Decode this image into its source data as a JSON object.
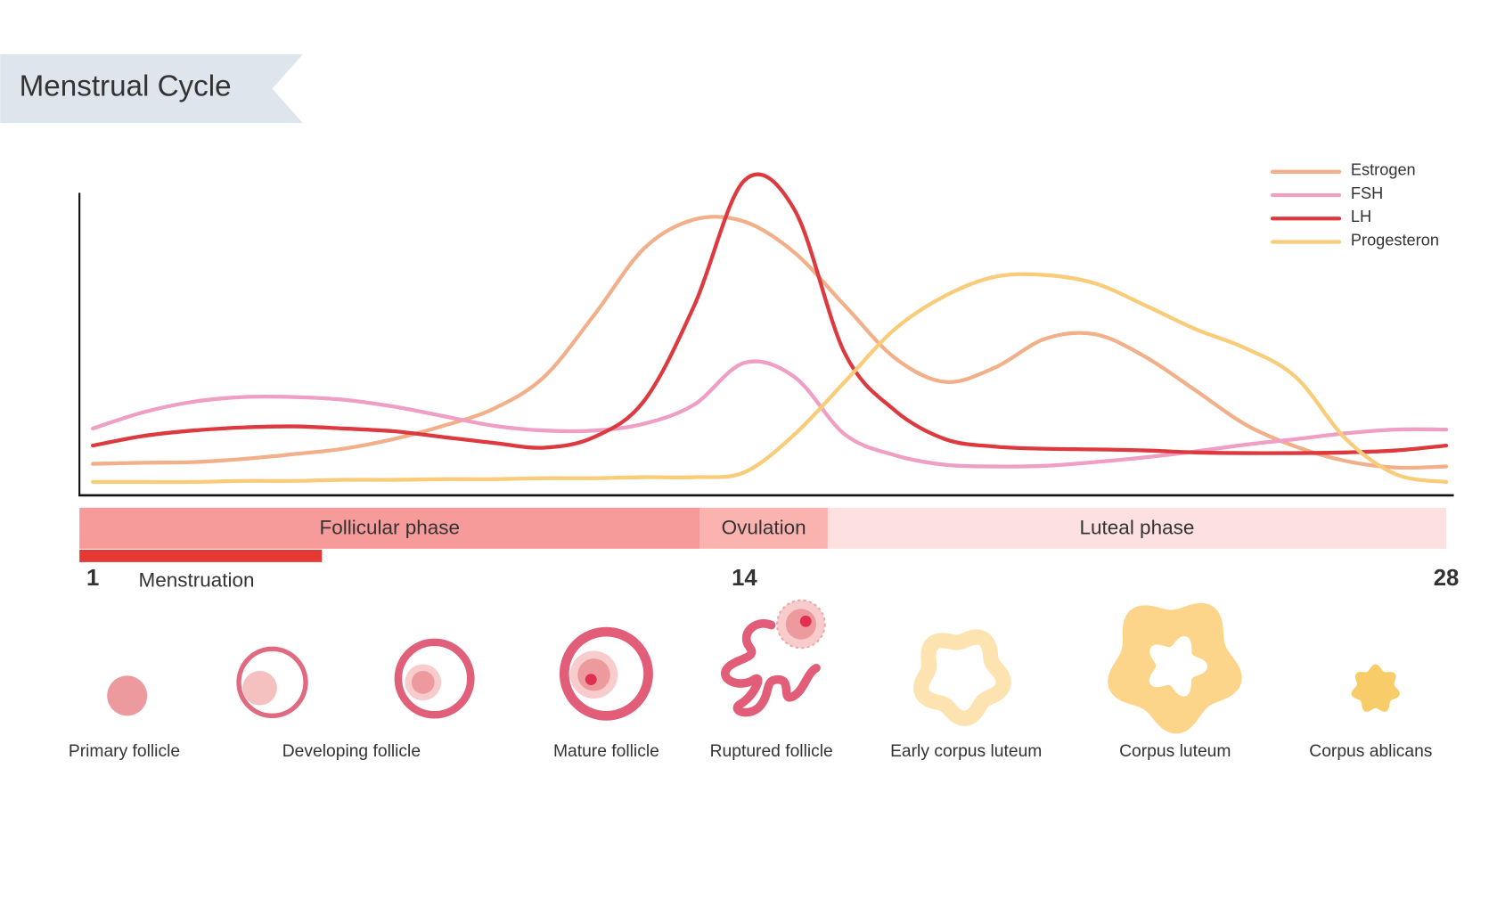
{
  "chart_data": {
    "type": "line",
    "title": "Menstrual Cycle",
    "x": [
      1,
      2,
      3,
      4,
      5,
      6,
      7,
      8,
      9,
      10,
      11,
      12,
      13,
      14,
      15,
      16,
      17,
      18,
      19,
      20,
      21,
      22,
      23,
      24,
      25,
      26,
      27,
      28
    ],
    "xlim": [
      1,
      28
    ],
    "xticks": [
      1,
      14,
      28
    ],
    "ylim": [
      0,
      100
    ],
    "legend": "top-right",
    "series": [
      {
        "name": "Estrogen",
        "color": "#f2b08a",
        "values": [
          9.2,
          9.5,
          9.7,
          10.6,
          12,
          13.6,
          16.4,
          20.3,
          25.3,
          34.5,
          52.6,
          72.1,
          80.5,
          79.9,
          70.8,
          55.4,
          40.1,
          33.1,
          37.3,
          45.7,
          47,
          40.4,
          30.6,
          20.6,
          14.2,
          10,
          8.1,
          8.4
        ]
      },
      {
        "name": "FSH",
        "color": "#ef9ec4",
        "values": [
          19.5,
          24.2,
          27.3,
          28.7,
          28.7,
          27.9,
          25.9,
          23.1,
          20.3,
          18.9,
          18.9,
          20.9,
          26.5,
          38.7,
          34.5,
          17.8,
          11.7,
          8.9,
          8.4,
          8.6,
          9.7,
          11.1,
          12.8,
          14.8,
          16.4,
          18.1,
          19.2,
          19.2
        ]
      },
      {
        "name": "LH",
        "color": "#dd3a3f",
        "values": [
          14.5,
          17.3,
          18.9,
          19.8,
          20.1,
          19.5,
          18.7,
          17,
          15.3,
          13.9,
          17,
          27.6,
          55.4,
          91.9,
          83.3,
          41.5,
          24.8,
          16.4,
          14.2,
          13.6,
          13.4,
          13.1,
          12.5,
          12.3,
          12.3,
          12.5,
          13.1,
          14.5
        ]
      },
      {
        "name": "Progesteron",
        "color": "#f8cc78",
        "values": [
          3.9,
          3.9,
          3.9,
          4.2,
          4.2,
          4.5,
          4.5,
          4.7,
          4.7,
          5,
          5,
          5.3,
          5.3,
          6.7,
          17.8,
          33.1,
          48.5,
          58.2,
          63.8,
          64.3,
          61.8,
          55.4,
          48.5,
          42.9,
          34.5,
          16.4,
          6.1,
          3.9
        ]
      }
    ],
    "phases": [
      {
        "label": "Follicular phase",
        "color": "#f79a9a"
      },
      {
        "label": "Ovulation",
        "color": "#fbb3b0"
      },
      {
        "label": "Luteal phase",
        "color": "#fde0e0"
      }
    ],
    "menstruation": "Menstruation",
    "stages": [
      "Primary follicle",
      "Developing follicle",
      "Mature follicle",
      "Ruptured follicle",
      "Early corpus luteum",
      "Corpus luteum",
      "Corpus ablicans"
    ]
  }
}
